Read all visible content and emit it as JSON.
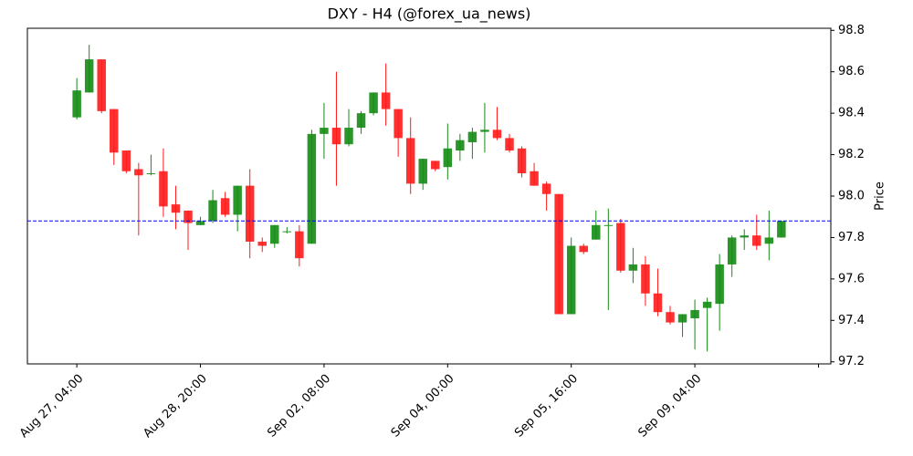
{
  "chart_data": {
    "type": "candlestick",
    "title": "DXY - H4 (@forex_ua_news)",
    "y_label": "Price",
    "x": [
      0,
      1,
      2,
      3,
      4,
      5,
      6,
      7,
      8,
      9,
      10,
      11,
      12,
      13,
      14,
      15,
      16,
      17,
      18,
      19,
      20,
      21,
      22,
      23,
      24,
      25,
      26,
      27,
      28,
      29,
      30,
      31,
      32,
      33,
      34,
      35,
      36,
      37,
      38,
      39,
      40,
      41,
      42,
      43,
      44,
      45,
      46,
      47,
      48,
      49,
      50,
      51,
      52,
      53,
      54,
      55,
      56,
      57
    ],
    "open": [
      98.38,
      98.5,
      98.66,
      98.42,
      98.22,
      98.13,
      98.11,
      98.12,
      97.96,
      97.93,
      97.86,
      97.88,
      97.99,
      97.91,
      98.05,
      97.78,
      97.77,
      97.83,
      97.83,
      97.77,
      98.3,
      98.33,
      98.25,
      98.33,
      98.4,
      98.5,
      98.42,
      98.28,
      98.06,
      98.17,
      98.14,
      98.22,
      98.26,
      98.31,
      98.32,
      98.28,
      98.23,
      98.12,
      98.06,
      98.01,
      97.43,
      97.76,
      97.79,
      97.86,
      97.87,
      97.64,
      97.67,
      97.53,
      97.44,
      97.39,
      97.41,
      97.46,
      97.48,
      97.67,
      97.8,
      97.81,
      97.77,
      97.8
    ],
    "high": [
      98.57,
      98.73,
      98.66,
      98.42,
      98.22,
      98.16,
      98.2,
      98.23,
      98.05,
      97.93,
      97.9,
      98.03,
      98.02,
      98.05,
      98.13,
      97.8,
      97.86,
      97.85,
      97.86,
      98.32,
      98.45,
      98.6,
      98.42,
      98.41,
      98.5,
      98.64,
      98.42,
      98.38,
      98.18,
      98.17,
      98.35,
      98.3,
      98.33,
      98.45,
      98.43,
      98.3,
      98.24,
      98.16,
      98.07,
      98.01,
      97.8,
      97.77,
      97.93,
      97.94,
      97.89,
      97.75,
      97.71,
      97.65,
      97.47,
      97.43,
      97.5,
      97.51,
      97.72,
      97.81,
      97.84,
      97.91,
      97.93,
      97.88
    ],
    "low": [
      98.37,
      98.5,
      98.4,
      98.15,
      98.11,
      97.81,
      98.1,
      97.9,
      97.84,
      97.74,
      97.86,
      97.87,
      97.9,
      97.83,
      97.7,
      97.73,
      97.75,
      97.82,
      97.66,
      97.77,
      98.18,
      98.05,
      98.24,
      98.3,
      98.39,
      98.34,
      98.19,
      98.01,
      98.03,
      98.12,
      98.08,
      98.17,
      98.18,
      98.21,
      98.27,
      98.21,
      98.09,
      98.05,
      97.93,
      97.43,
      97.43,
      97.72,
      97.79,
      97.45,
      97.63,
      97.58,
      97.47,
      97.42,
      97.38,
      97.32,
      97.26,
      97.25,
      97.35,
      97.61,
      97.74,
      97.74,
      97.69,
      97.8
    ],
    "close": [
      98.51,
      98.66,
      98.41,
      98.21,
      98.12,
      98.1,
      98.11,
      97.95,
      97.92,
      97.87,
      97.88,
      97.98,
      97.91,
      98.05,
      97.78,
      97.76,
      97.86,
      97.83,
      97.7,
      98.3,
      98.33,
      98.25,
      98.33,
      98.4,
      98.5,
      98.42,
      98.28,
      98.06,
      98.18,
      98.13,
      98.23,
      98.27,
      98.31,
      98.32,
      98.28,
      98.22,
      98.11,
      98.05,
      98.01,
      97.43,
      97.76,
      97.73,
      97.86,
      97.86,
      97.64,
      97.67,
      97.53,
      97.44,
      97.39,
      97.43,
      97.45,
      97.49,
      97.67,
      97.8,
      97.81,
      97.76,
      97.8,
      97.88
    ],
    "up_color": "#148c14",
    "down_color": "#ff1a1a",
    "reference_line": {
      "value": 97.88,
      "color": "#0000ff"
    },
    "xlim": [
      -4,
      61
    ],
    "ylim": [
      97.19,
      98.81
    ],
    "xticks": [
      {
        "value": 0,
        "label": "Aug 27, 04:00"
      },
      {
        "value": 10,
        "label": "Aug 28, 20:00"
      },
      {
        "value": 20,
        "label": "Sep 02, 08:00"
      },
      {
        "value": 30,
        "label": "Sep 04, 00:00"
      },
      {
        "value": 40,
        "label": "Sep 05, 16:00"
      },
      {
        "value": 50,
        "label": "Sep 09, 04:00"
      },
      {
        "value": 60,
        "label": null
      }
    ],
    "yticks": [
      97.2,
      97.4,
      97.6,
      97.8,
      {
        "value": 98,
        "label": "98.0"
      },
      98.2,
      98.4,
      98.6,
      98.8
    ]
  }
}
